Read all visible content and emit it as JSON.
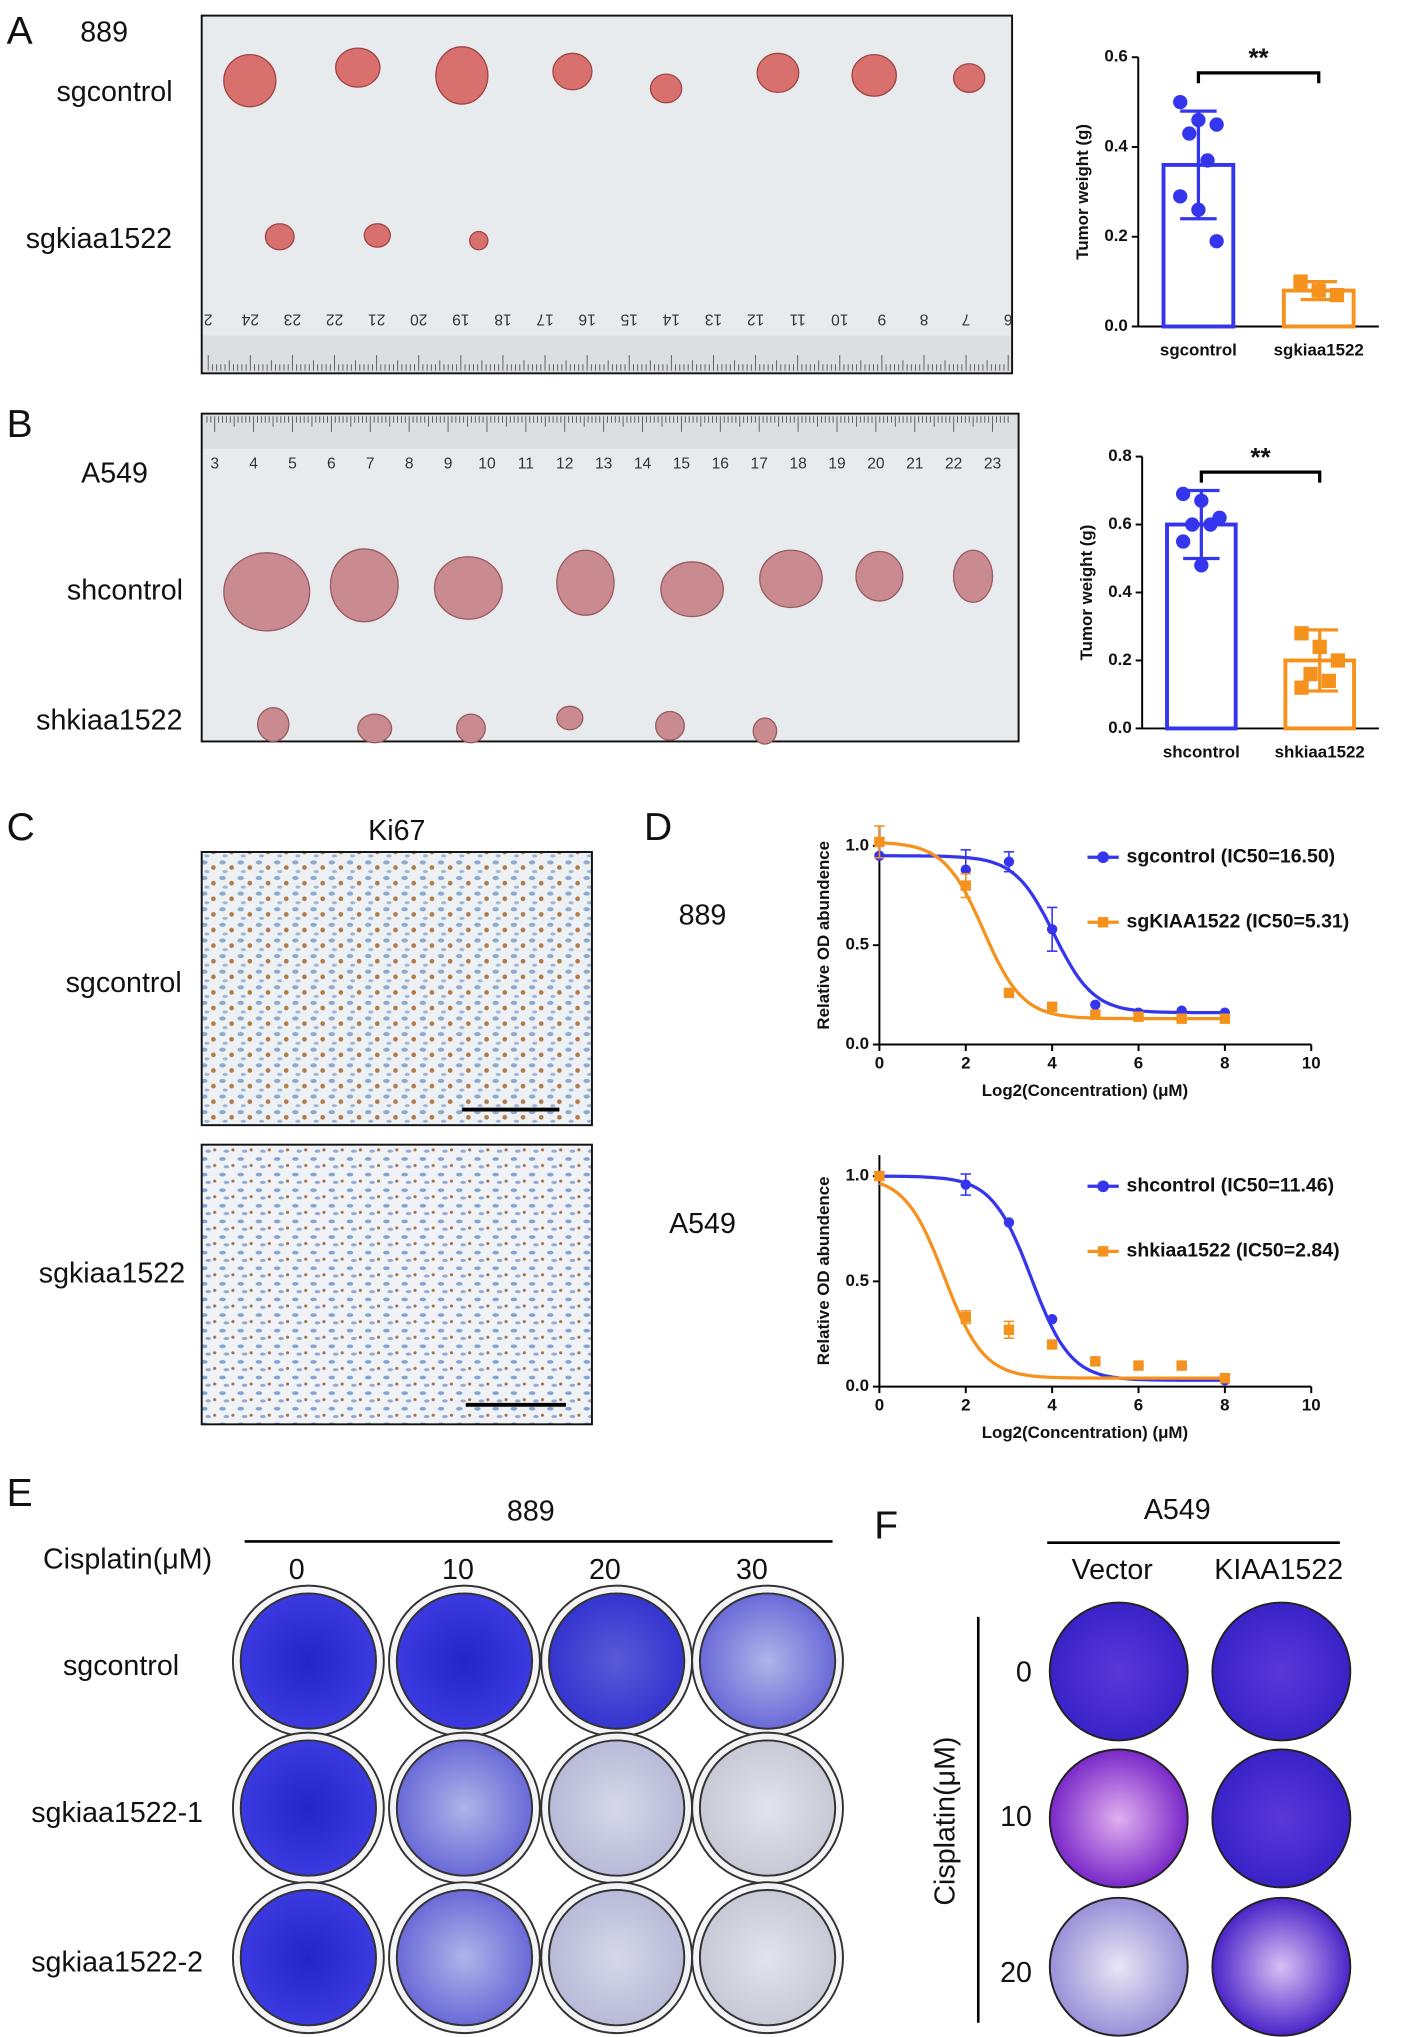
{
  "panels": {
    "a": {
      "label": "A",
      "cell_line": "889",
      "groups": [
        "sgcontrol",
        "sgkiaa1522"
      ],
      "ruler": [
        2,
        24,
        23,
        22,
        21,
        20,
        19,
        18,
        17,
        16,
        15,
        14,
        13,
        12,
        11,
        10,
        9,
        8,
        7,
        6
      ]
    },
    "b": {
      "label": "B",
      "cell_line": "A549",
      "groups": [
        "shcontrol",
        "shkiaa1522"
      ],
      "ruler": [
        3,
        4,
        5,
        6,
        7,
        8,
        9,
        10,
        11,
        12,
        13,
        14,
        15,
        16,
        17,
        18,
        19,
        20,
        21,
        22,
        23
      ]
    },
    "c": {
      "label": "C",
      "stain": "Ki67",
      "groups": [
        "sgcontrol",
        "sgkiaa1522"
      ]
    },
    "d": {
      "label": "D",
      "cell_lines": [
        "889",
        "A549"
      ]
    },
    "e": {
      "label": "E",
      "cell_line": "889",
      "treatment": "Cisplatin(μM)",
      "doses": [
        0,
        10,
        20,
        30
      ],
      "groups": [
        "sgcontrol",
        "sgkiaa1522-1",
        "sgkiaa1522-2"
      ]
    },
    "f": {
      "label": "F",
      "cell_line": "A549",
      "treatment": "Cisplatin(μM)",
      "groups": [
        "Vector",
        "KIAA1522"
      ],
      "doses": [
        0,
        10,
        20
      ]
    }
  },
  "chart_data": [
    {
      "type": "bar",
      "y_label": "Tumor weight (g)",
      "categories": [
        "sgcontrol",
        "sgkiaa1522"
      ],
      "values": [
        0.36,
        0.08
      ],
      "errors": [
        0.12,
        0.02
      ],
      "colors": [
        "#3535ee",
        "#f5921e"
      ],
      "markers": [
        "circle",
        "square"
      ],
      "points": [
        [
          0.5,
          0.46,
          0.45,
          0.43,
          0.37,
          0.29,
          0.26,
          0.19
        ],
        [
          0.1,
          0.08,
          0.07
        ]
      ],
      "annotation": "**",
      "ylim": [
        0,
        0.6
      ],
      "yticks": [
        {
          "value": 0,
          "label": "0.0"
        },
        0.2,
        0.4,
        0.6
      ]
    },
    {
      "type": "bar",
      "y_label": "Tumor weight (g)",
      "categories": [
        "shcontrol",
        "shkiaa1522"
      ],
      "values": [
        0.6,
        0.2
      ],
      "errors": [
        0.1,
        0.09
      ],
      "colors": [
        "#3535ee",
        "#f5921e"
      ],
      "markers": [
        "circle",
        "square"
      ],
      "points": [
        [
          0.69,
          0.67,
          0.62,
          0.6,
          0.6,
          0.55,
          0.48
        ],
        [
          0.28,
          0.24,
          0.2,
          0.16,
          0.14,
          0.12
        ]
      ],
      "annotation": "**",
      "ylim": [
        0,
        0.8
      ],
      "yticks": [
        {
          "value": 0,
          "label": "0.0"
        },
        0.2,
        0.4,
        0.6,
        0.8
      ]
    },
    {
      "type": "scatter",
      "x_label": "Log2(Concentration) (μM)",
      "y_label": "Relative OD abundence",
      "series": [
        {
          "name": "sgcontrol (IC50=16.50)",
          "ic50": 16.5,
          "color": "#3535ee",
          "marker": "circle",
          "x": [
            0,
            2,
            3,
            4,
            5,
            6,
            7,
            8
          ],
          "values": [
            0.95,
            0.88,
            0.92,
            0.58,
            0.2,
            0.16,
            0.17,
            0.16
          ],
          "errors": [
            null,
            0.1,
            0.05,
            0.11,
            null,
            null,
            null,
            null
          ]
        },
        {
          "name": "sgKIAA1522 (IC50=5.31)",
          "ic50": 5.31,
          "color": "#f5921e",
          "marker": "square",
          "x": [
            0,
            2,
            3,
            4,
            5,
            6,
            7,
            8
          ],
          "values": [
            1.02,
            0.8,
            0.26,
            0.19,
            0.15,
            0.14,
            0.13,
            0.13
          ],
          "errors": [
            0.08,
            0.06,
            null,
            null,
            null,
            null,
            null,
            null
          ]
        }
      ],
      "xlim": [
        0,
        10
      ],
      "xticks": [
        0,
        2,
        4,
        6,
        8,
        10
      ],
      "ylim": [
        0,
        1.1
      ],
      "yticks": [
        {
          "value": 0,
          "label": "0.0"
        },
        0.5,
        {
          "value": 1,
          "label": "1.0"
        }
      ]
    },
    {
      "type": "scatter",
      "x_label": "Log2(Concentration) (μM)",
      "y_label": "Relative OD abundence",
      "series": [
        {
          "name": "shcontrol (IC50=11.46)",
          "ic50": 11.46,
          "color": "#3535ee",
          "marker": "circle",
          "x": [
            0,
            2,
            3,
            4,
            5,
            6,
            7,
            8
          ],
          "values": [
            1.0,
            0.96,
            0.78,
            0.32,
            0.12,
            0.1,
            0.1,
            0.03
          ],
          "errors": [
            null,
            0.05,
            null,
            null,
            null,
            null,
            null,
            null
          ]
        },
        {
          "name": "shkiaa1522 (IC50=2.84)",
          "ic50": 2.84,
          "color": "#f5921e",
          "marker": "square",
          "x": [
            0,
            2,
            3,
            4,
            5,
            6,
            7,
            8
          ],
          "values": [
            1.0,
            0.33,
            0.27,
            0.2,
            0.12,
            0.1,
            0.1,
            0.04
          ],
          "errors": [
            null,
            0.03,
            0.04,
            null,
            null,
            null,
            null,
            null
          ]
        }
      ],
      "xlim": [
        0,
        10
      ],
      "xticks": [
        0,
        2,
        4,
        6,
        8,
        10
      ],
      "ylim": [
        0,
        1.1
      ],
      "yticks": [
        {
          "value": 0,
          "label": "0.0"
        },
        0.5,
        {
          "value": 1,
          "label": "1.0"
        }
      ]
    }
  ]
}
